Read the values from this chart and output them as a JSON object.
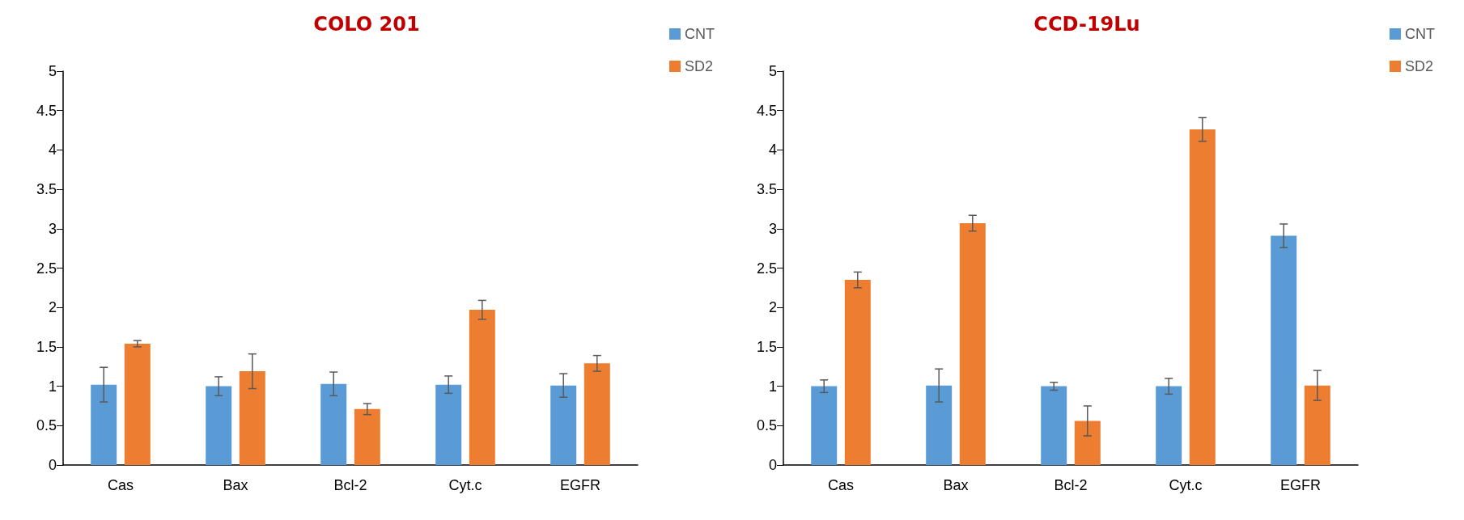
{
  "chart_data": [
    {
      "type": "bar",
      "title": "COLO 201",
      "categories": [
        "Cas",
        "Bax",
        "Bcl-2",
        "Cyt.c",
        "EGFR"
      ],
      "series": [
        {
          "name": "CNT",
          "color": "#5b9bd5",
          "values": [
            1.02,
            1.0,
            1.03,
            1.02,
            1.01
          ],
          "errors": [
            0.22,
            0.12,
            0.15,
            0.11,
            0.15
          ]
        },
        {
          "name": "SD2",
          "color": "#ed7d31",
          "values": [
            1.54,
            1.19,
            0.71,
            1.97,
            1.29
          ],
          "errors": [
            0.04,
            0.22,
            0.07,
            0.12,
            0.1
          ]
        }
      ],
      "ylim": [
        0,
        5
      ],
      "yticks": [
        0,
        0.5,
        1,
        1.5,
        2,
        2.5,
        3,
        3.5,
        4,
        4.5,
        5
      ],
      "grid": false,
      "legend": "top right"
    },
    {
      "type": "bar",
      "title": "CCD-19Lu",
      "categories": [
        "Cas",
        "Bax",
        "Bcl-2",
        "Cyt.c",
        "EGFR"
      ],
      "series": [
        {
          "name": "CNT",
          "color": "#5b9bd5",
          "values": [
            1.0,
            1.01,
            1.0,
            1.0,
            2.91
          ],
          "errors": [
            0.08,
            0.21,
            0.05,
            0.1,
            0.15
          ]
        },
        {
          "name": "SD2",
          "color": "#ed7d31",
          "values": [
            2.35,
            3.07,
            0.56,
            4.26,
            1.01
          ],
          "errors": [
            0.1,
            0.1,
            0.19,
            0.15,
            0.19
          ]
        }
      ],
      "ylim": [
        0,
        5
      ],
      "yticks": [
        0,
        0.5,
        1,
        1.5,
        2,
        2.5,
        3,
        3.5,
        4,
        4.5,
        5
      ],
      "grid": false,
      "legend": "top right"
    }
  ]
}
